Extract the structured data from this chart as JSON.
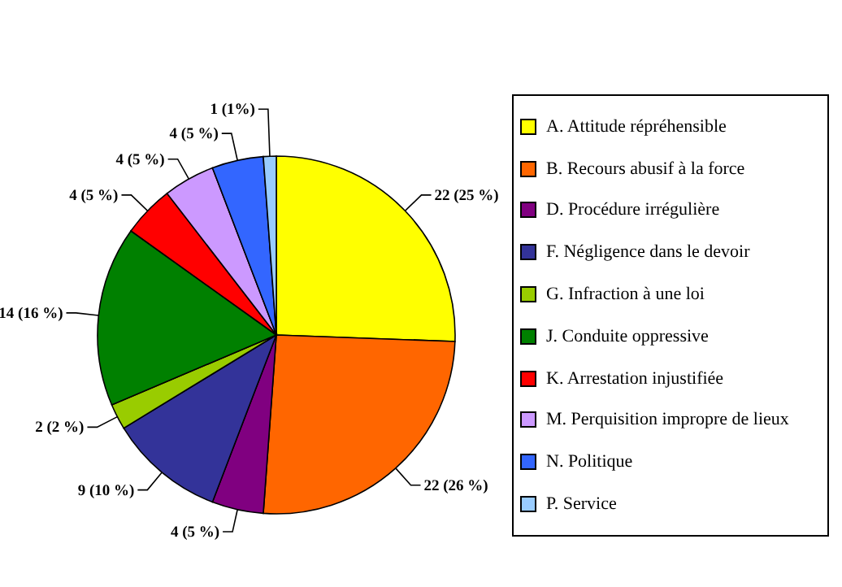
{
  "chart_data": {
    "type": "pie",
    "categories": [
      "A. Attitude répréhensible",
      "B. Recours abusif à la force",
      "D. Procédure irrégulière",
      "F. Négligence dans le devoir",
      "G. Infraction à une loi",
      "J. Conduite oppressive",
      "K. Arrestation injustifiée",
      "M. Perquisition impropre de lieux",
      "N. Politique",
      "P. Service"
    ],
    "values": [
      22,
      22,
      4,
      9,
      2,
      14,
      4,
      4,
      4,
      1
    ],
    "value_labels": [
      "22 (25 %)",
      "22 (26 %)",
      "4 (5 %)",
      "9 (10 %)",
      "2 (2 %)",
      "14 (16 %)",
      "4 (5 %)",
      "4 (5 %)",
      "4 (5 %)",
      "1 (1%)"
    ],
    "colors": [
      "#ffff00",
      "#ff6600",
      "#800080",
      "#333399",
      "#99cc00",
      "#008000",
      "#ff0000",
      "#cc99ff",
      "#3366ff",
      "#99ccff"
    ],
    "legend": "right"
  }
}
